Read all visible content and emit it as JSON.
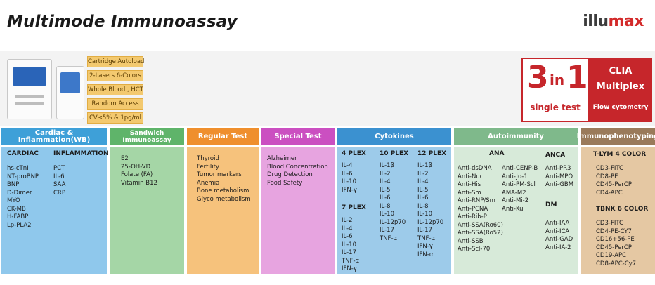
{
  "header": {
    "title": "Multimode Immunoassay",
    "brand_part1": "illu",
    "brand_part2": "max",
    "brand_colors": {
      "dark": "#3c3c3c",
      "accent": "#d32a2a"
    }
  },
  "features": [
    "Cartridge Autoload",
    "2-Lasers 6-Colors",
    "Whole Blood , HCT",
    "Random Access",
    "CV≤5% & 1pg/ml"
  ],
  "promo": {
    "big_left": "3",
    "big_mid": "in",
    "big_right": "1",
    "subtitle": "single test",
    "right_line1": "CLIA",
    "right_line2": "Multiplex",
    "right_line3": "Flow cytometry",
    "accent_color": "#c6262b"
  },
  "columns": {
    "cardiac": {
      "header": "Cardiac & Inflammation(WB)",
      "sub1": "CARDIAC",
      "items1": "hs-cTnI\nNT-proBNP\nBNP\nD-Dimer\nMYO\nCK-MB\nH-FABP\nLp-PLA2",
      "sub2": "INFLAMMATION",
      "items2": "PCT\nIL-6\nSAA\nCRP"
    },
    "sandwich": {
      "header_line1": "Sandwich",
      "header_line2": "Immunoassay",
      "items": "E2\n25-OH-VD\nFolate (FA)\nVitamin B12"
    },
    "regular": {
      "header": "Regular Test",
      "items": "Thyroid\nFertility\nTumor markers\nAnemia\nBone metabolism\nGlyco metabolism"
    },
    "special": {
      "header": "Special Test",
      "items": "Alzheimer\nBlood Concentration\nDrug Detection\nFood Safety"
    },
    "cytokines": {
      "header": "Cytokines",
      "p4_title": "4 PLEX",
      "p4_items": "IL-4\nIL-6\nIL-10\nIFN-γ",
      "p7_title": "7 PLEX",
      "p7_items": "IL-2\nIL-4\nIL-6\nIL-10\nIL-17\nTNF-α\nIFN-γ",
      "p10_title": "10 PLEX",
      "p10_items": "IL-1β\nIL-2\nIL-4\nIL-5\nIL-6\nIL-8\nIL-10\nIL-12p70\nIL-17\nTNF-α",
      "p12_title": "12 PLEX",
      "p12_items": "IL-1β\nIL-2\nIL-4\nIL-5\nIL-6\nIL-8\nIL-10\nIL-12p70\nIL-17\nTNF-α\nIFN-γ\nIFN-α"
    },
    "autoimmunity": {
      "header": "Autoimmunity",
      "ana_title": "ANA",
      "ana_col1": "Anti-dsDNA\nAnti-Nuc\nAnti-His\nAnti-Sm\nAnti-RNP/Sm\nAnti-PCNA\nAnti-Rib-P\nAnti-SSA(Ro60)\nAnti-SSA(Ro52)\nAnti-SSB\nAnti-Scl-70",
      "ana_col2": "Anti-CENP-B\nAnti-Jo-1\nAnti-PM-Scl\nAMA-M2\nAnti-Mi-2\nAnti-Ku",
      "anca_title": "ANCA",
      "anca_items": "Anti-PR3\nAnti-MPO\nAnti-GBM",
      "dm_title": "DM",
      "dm_items": "Anti-IAA\nAnti-ICA\nAnti-GAD\nAnti-IA-2"
    },
    "immuno": {
      "header": "Immunophenotyping",
      "t_title": "T-LYM 4 COLOR",
      "t_items": "CD3-FITC\nCD8-PE\nCD45-PerCP\nCD4-APC",
      "b_title": "TBNK 6 COLOR",
      "b_items": "CD3-FITC\nCD4-PE-CY7\nCD16+56-PE\nCD45-PerCP\nCD19-APC\nCD8-APC-Cy7"
    }
  }
}
